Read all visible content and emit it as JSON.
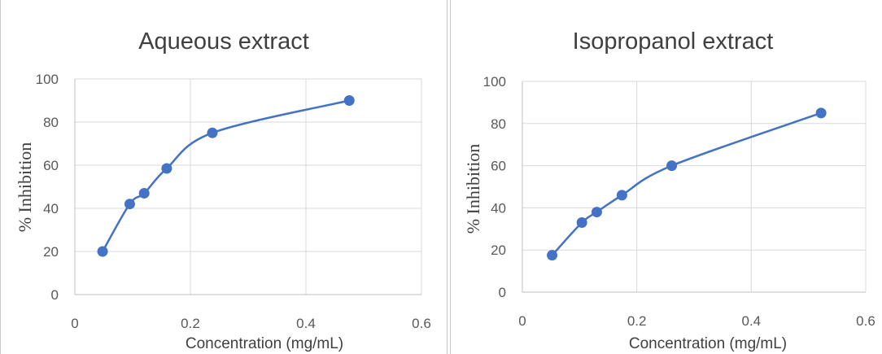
{
  "colors": {
    "series": "#4472c4",
    "grid": "#d9d9d9",
    "text": "#404040",
    "tick_text": "#595959"
  },
  "chart_data": [
    {
      "type": "scatter",
      "title": "Aqueous extract",
      "xlabel": "Concentration (mg/mL)",
      "ylabel": "% Inhibition",
      "xlim": [
        0,
        0.6
      ],
      "ylim": [
        0,
        100
      ],
      "x_ticks": [
        0,
        0.2,
        0.4,
        0.6
      ],
      "x_tick_labels": [
        "0",
        "0.2",
        "0.4",
        "0.6"
      ],
      "y_ticks": [
        0,
        20,
        40,
        60,
        80,
        100
      ],
      "y_tick_labels": [
        "0",
        "20",
        "40",
        "60",
        "80",
        "100"
      ],
      "grid": true,
      "legend": "none",
      "line": "smooth",
      "series": [
        {
          "x": [
            0.048,
            0.095,
            0.12,
            0.159,
            0.238,
            0.475
          ],
          "y": [
            20,
            42,
            47,
            58.5,
            75,
            90
          ]
        }
      ]
    },
    {
      "type": "scatter",
      "title": "Isopropanol extract",
      "xlabel": "Concentration (mg/mL)",
      "ylabel": "% Inhibition",
      "xlim": [
        0,
        0.6
      ],
      "ylim": [
        0,
        100
      ],
      "x_ticks": [
        0,
        0.2,
        0.4,
        0.6
      ],
      "x_tick_labels": [
        "0",
        "0.2",
        "0.4",
        "0.6"
      ],
      "y_ticks": [
        0,
        20,
        40,
        60,
        80,
        100
      ],
      "y_tick_labels": [
        "0",
        "20",
        "40",
        "60",
        "80",
        "100"
      ],
      "grid": true,
      "legend": "none",
      "line": "smooth",
      "series": [
        {
          "x": [
            0.052,
            0.104,
            0.13,
            0.174,
            0.261,
            0.522
          ],
          "y": [
            17.5,
            33,
            38,
            46,
            60,
            85
          ]
        }
      ]
    }
  ]
}
